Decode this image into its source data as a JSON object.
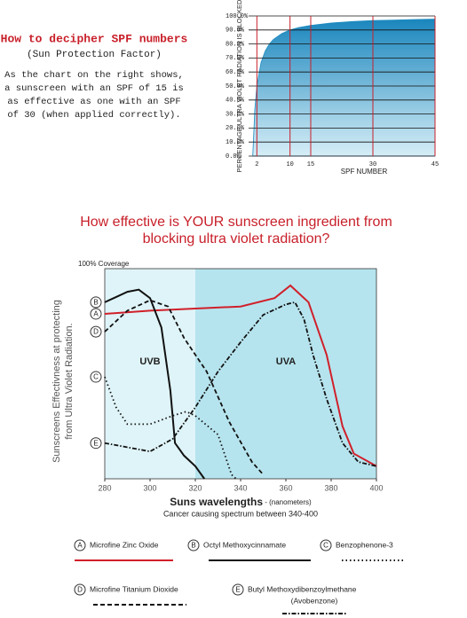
{
  "intro": {
    "heading": "How to decipher SPF numbers",
    "subheading": "(Sun Protection Factor)",
    "lines": [
      "As the chart on the right shows,",
      "a sunscreen with an SPF of 15 is",
      "as effective as one with an SPF",
      "of 30 (when applied correctly)."
    ]
  },
  "title_lines": [
    "How effective is YOUR sunscreen ingredient from",
    "blocking ultra violet radiation?"
  ],
  "chart_data": [
    {
      "type": "area",
      "y_label": "PERCENTAGE ULTRA VIOLET RADIATION IS BLOCKED",
      "x_label": "SPF NUMBER",
      "x": [
        1,
        1.5,
        2,
        3,
        4,
        5,
        6,
        8,
        10,
        12,
        15,
        20,
        25,
        30,
        35,
        40,
        45
      ],
      "values": [
        0,
        33.3,
        50,
        66.7,
        75,
        80,
        83.3,
        87.5,
        90,
        91.7,
        93.3,
        95,
        96,
        96.7,
        97.1,
        97.5,
        97.8
      ],
      "color": "#1f8cc0",
      "xlim": [
        0,
        45
      ],
      "ylim": [
        0,
        100
      ],
      "xticks": [
        2,
        10,
        15,
        30,
        45
      ],
      "yticks": [
        {
          "value": 0,
          "label": "0.0%"
        },
        {
          "value": 10,
          "label": "10.0%"
        },
        {
          "value": 20,
          "label": "20.0%"
        },
        {
          "value": 30,
          "label": "30.0%"
        },
        {
          "value": 40,
          "label": "40.0%"
        },
        {
          "value": 50,
          "label": "50.0%"
        },
        {
          "value": 60,
          "label": "60.0%"
        },
        {
          "value": 70,
          "label": "70.0%"
        },
        {
          "value": 80,
          "label": "80.0%"
        },
        {
          "value": 90,
          "label": "90.0%"
        },
        {
          "value": 100,
          "label": "100.0%"
        }
      ],
      "grid_color_x": "#c8202a",
      "grid_color_y": "#111"
    },
    {
      "type": "line",
      "annotation": "100% Coverage",
      "y_label": [
        "Sunscreens Effectivness at protecting",
        "from Ultra Violet Radiation."
      ],
      "x_label": "Suns wavelengths",
      "x_unit": " - (nanometers)",
      "subtitle": "Cancer causing spectrum between 340-400",
      "xlim": [
        280,
        400
      ],
      "ylim": [
        0,
        100
      ],
      "xticks": [
        280,
        300,
        320,
        340,
        360,
        380,
        400
      ],
      "regions": [
        {
          "name": "UVB",
          "x": [
            280,
            320
          ],
          "color": "#dff4f8"
        },
        {
          "name": "UVA",
          "x": [
            320,
            400
          ],
          "color": "#b6e4ee"
        }
      ],
      "series": [
        {
          "key": "A",
          "name": "Microfine Zinc Oxide",
          "color": "#d0202a",
          "dash": "solid",
          "x": [
            280,
            300,
            320,
            340,
            355,
            362,
            370,
            378,
            385,
            390,
            400
          ],
          "values": [
            78.5,
            80,
            81,
            82,
            86,
            92,
            84,
            59,
            25,
            12,
            6
          ]
        },
        {
          "key": "B",
          "name": "Octyl Methoxycinnamate",
          "color": "#111",
          "dash": "solid",
          "x": [
            280,
            290,
            295,
            300,
            305,
            309,
            311,
            315,
            320,
            324
          ],
          "values": [
            84,
            89,
            90,
            86,
            72,
            42,
            17,
            11,
            6,
            0
          ]
        },
        {
          "key": "C",
          "name": "Benzophenone-3",
          "color": "#111",
          "dash": "dotted",
          "x": [
            280,
            285,
            290,
            300,
            310,
            316,
            320,
            330,
            336,
            338
          ],
          "values": [
            48.5,
            34,
            26,
            26,
            30,
            32,
            30,
            21,
            2,
            0
          ]
        },
        {
          "key": "D",
          "name": "Microfine Titanium Dioxide",
          "color": "#111",
          "dash": "dashed",
          "x": [
            280,
            290,
            300,
            308,
            315,
            325,
            335,
            345,
            350
          ],
          "values": [
            70,
            80,
            85,
            82,
            67,
            51,
            27,
            8,
            2
          ]
        },
        {
          "key": "E",
          "name": "Butyl Methoxydibenzoylmethane",
          "alt_name": "(Avobenzone)",
          "color": "#111",
          "dash": "dashdot",
          "x": [
            280,
            300,
            310,
            320,
            330,
            340,
            350,
            360,
            364,
            368,
            372,
            378,
            385,
            392,
            400
          ],
          "values": [
            17,
            13,
            19,
            34,
            51,
            65,
            78,
            83,
            84,
            76,
            59,
            38,
            17,
            8,
            6
          ]
        }
      ]
    }
  ]
}
